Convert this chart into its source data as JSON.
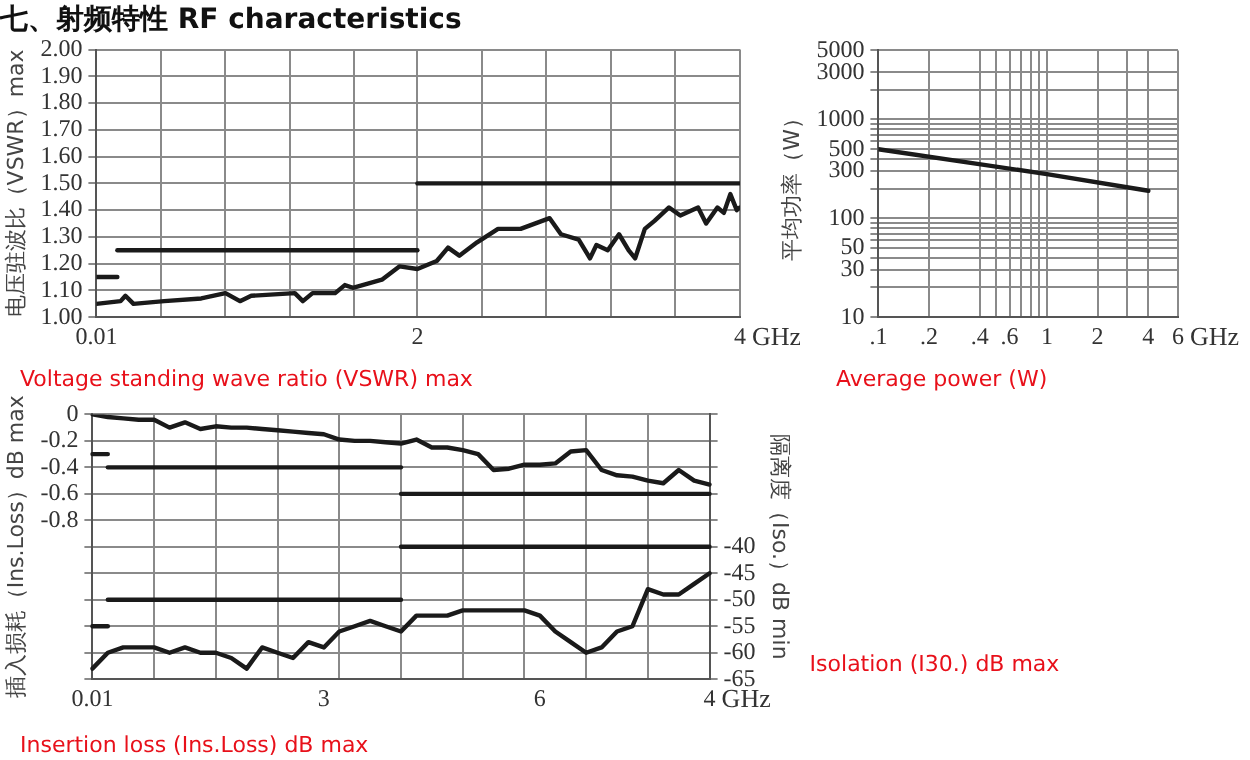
{
  "chart_data": [
    {
      "type": "line",
      "title": "七、射频特性 RF characteristics",
      "ylabel": "电压驻波比（VSWR）max",
      "xlabel": "GHz",
      "annotations": [
        "Voltage standing wave ratio (VSWR) max"
      ],
      "xlim": [
        0.01,
        4
      ],
      "xticks": [
        0.01,
        {
          "value": 0.41,
          "label": null
        },
        {
          "value": 0.81,
          "label": null
        },
        {
          "value": 1.21,
          "label": null
        },
        {
          "value": 1.61,
          "label": null
        },
        2,
        {
          "value": 2.4,
          "label": null
        },
        {
          "value": 2.8,
          "label": null
        },
        {
          "value": 3.2,
          "label": null
        },
        {
          "value": 3.6,
          "label": null
        },
        4
      ],
      "ylim": [
        1,
        2
      ],
      "yticks": [
        {
          "value": 1,
          "label": "1.00"
        },
        {
          "value": 1.1,
          "label": "1.10"
        },
        {
          "value": 1.2,
          "label": "1.20"
        },
        {
          "value": 1.3,
          "label": "1.30"
        },
        {
          "value": 1.4,
          "label": "1.40"
        },
        {
          "value": 1.5,
          "label": "1.50"
        },
        {
          "value": 1.6,
          "label": "1.60"
        },
        {
          "value": 1.7,
          "label": "1.70"
        },
        {
          "value": 1.8,
          "label": "1.80"
        },
        {
          "value": 1.9,
          "label": "1.90"
        },
        {
          "value": 2,
          "label": "2.00"
        }
      ],
      "grid": true,
      "legend": false,
      "marker": "none",
      "series": [
        {
          "color": "#1a1a1a",
          "x": [
            0.01,
            0.16,
            0.19,
            0.24,
            0.43,
            0.66,
            0.81,
            0.9,
            0.97,
            1.24,
            1.29,
            1.35,
            1.49,
            1.55,
            1.6,
            1.78,
            1.89,
            2.0,
            2.12,
            2.19,
            2.26,
            2.37,
            2.5,
            2.64,
            2.82,
            2.89,
            3.0,
            3.07,
            3.11,
            3.18,
            3.25,
            3.31,
            3.35,
            3.41,
            3.47,
            3.56,
            3.63,
            3.74,
            3.79,
            3.86,
            3.9,
            3.94,
            3.98,
            4
          ],
          "values": [
            1.05,
            1.06,
            1.08,
            1.05,
            1.06,
            1.07,
            1.09,
            1.06,
            1.08,
            1.09,
            1.06,
            1.09,
            1.09,
            1.12,
            1.11,
            1.14,
            1.19,
            1.18,
            1.21,
            1.26,
            1.23,
            1.28,
            1.33,
            1.33,
            1.37,
            1.31,
            1.29,
            1.22,
            1.27,
            1.25,
            1.31,
            1.25,
            1.22,
            1.33,
            1.36,
            1.41,
            1.38,
            1.41,
            1.35,
            1.41,
            1.39,
            1.46,
            1.4,
            1.41
          ]
        },
        {
          "color": "#1a1a1a",
          "x": [
            0.01,
            0.14
          ],
          "values": [
            1.15,
            1.15
          ]
        },
        {
          "color": "#1a1a1a",
          "x": [
            0.14,
            2
          ],
          "values": [
            1.25,
            1.25
          ]
        },
        {
          "color": "#1a1a1a",
          "x": [
            2,
            4
          ],
          "values": [
            1.5,
            1.5
          ]
        }
      ]
    },
    {
      "type": "line",
      "ylabel": "平均功率（W）",
      "xlabel": "GHz",
      "annotations": [
        "Average power (W)"
      ],
      "log": "xy",
      "xlim": [
        0.1,
        6
      ],
      "xticks": [
        {
          "value": 0.1,
          "label": ".1"
        },
        {
          "value": 0.2,
          "label": ".2"
        },
        {
          "value": 0.4,
          "label": ".4"
        },
        {
          "value": 0.5,
          "label": null
        },
        {
          "value": 0.6,
          "label": ".6"
        },
        {
          "value": 0.7,
          "label": null
        },
        {
          "value": 0.8,
          "label": null
        },
        {
          "value": 0.9,
          "label": null
        },
        {
          "value": 1,
          "label": "1"
        },
        {
          "value": 2,
          "label": "2"
        },
        {
          "value": 3,
          "label": null
        },
        {
          "value": 4,
          "label": "4"
        },
        {
          "value": 6,
          "label": "6"
        }
      ],
      "ylim": [
        10,
        5000
      ],
      "yticks": [
        10,
        {
          "value": 20,
          "label": null
        },
        30,
        {
          "value": 40,
          "label": null
        },
        50,
        {
          "value": 60,
          "label": null
        },
        {
          "value": 70,
          "label": null
        },
        {
          "value": 80,
          "label": null
        },
        {
          "value": 90,
          "label": null
        },
        100,
        {
          "value": 200,
          "label": null
        },
        300,
        {
          "value": 400,
          "label": null
        },
        500,
        {
          "value": 600,
          "label": null
        },
        {
          "value": 700,
          "label": null
        },
        {
          "value": 800,
          "label": null
        },
        {
          "value": 900,
          "label": null
        },
        1000,
        {
          "value": 2000,
          "label": null
        },
        3000,
        5000
      ],
      "grid": true,
      "legend": false,
      "marker": "none",
      "series": [
        {
          "color": "#1a1a1a",
          "x": [
            0.1,
            1,
            4
          ],
          "values": [
            500,
            280,
            190
          ]
        }
      ]
    },
    {
      "type": "line",
      "ylabel": "插入损耗（Ins.Loss）dB max",
      "y2label": "隔离度（Iso.）dB min",
      "xlabel": "GHz",
      "annotations": [
        "Insertion loss (Ins.Loss) dB max",
        "Isolation (I30.) dB max"
      ],
      "categories": [
        "0.01",
        null,
        null,
        null,
        null,
        null,
        null,
        null,
        null,
        null,
        null,
        null,
        null,
        null,
        null,
        "3",
        null,
        null,
        null,
        null,
        null,
        null,
        null,
        null,
        null,
        null,
        null,
        null,
        null,
        "6",
        null,
        null,
        null,
        null,
        null,
        null,
        null,
        null,
        null,
        null,
        "4"
      ],
      "ylim": [
        -2,
        0
      ],
      "yticks": [
        0,
        -0.2,
        -0.4,
        -0.6,
        -0.8,
        {
          "value": -1,
          "label": null
        },
        {
          "value": -1.2,
          "label": null
        },
        {
          "value": -1.4,
          "label": null
        },
        {
          "value": -1.6,
          "label": null
        },
        {
          "value": -1.8,
          "label": null
        },
        {
          "value": -2,
          "label": null
        }
      ],
      "y2lim": [
        -65,
        -15
      ],
      "y2ticks": [
        {
          "value": -15,
          "label": null
        },
        {
          "value": -20,
          "label": null
        },
        {
          "value": -25,
          "label": null
        },
        {
          "value": -30,
          "label": null
        },
        {
          "value": -35,
          "label": null
        },
        -40,
        -45,
        -50,
        -55,
        -60,
        -65
      ],
      "grid": true,
      "legend": false,
      "marker": "none",
      "series": [
        {
          "color": "#1a1a1a",
          "values": [
            0,
            -0.02,
            -0.03,
            -0.04,
            -0.04,
            -0.1,
            -0.06,
            -0.11,
            -0.09,
            -0.1,
            -0.1,
            -0.11,
            -0.12,
            -0.13,
            -0.14,
            -0.15,
            -0.19,
            -0.2,
            -0.2,
            -0.21,
            -0.22,
            -0.19,
            -0.25,
            -0.25,
            -0.27,
            -0.3,
            -0.42,
            -0.41,
            -0.38,
            -0.38,
            -0.37,
            -0.28,
            -0.27,
            -0.42,
            -0.46,
            -0.47,
            -0.5,
            -0.52,
            -0.42,
            -0.5,
            -0.53
          ]
        },
        {
          "color": "#1a1a1a",
          "values": [
            -0.3,
            -0.3,
            null,
            null,
            null,
            null,
            null,
            null,
            null,
            null,
            null,
            null,
            null,
            null,
            null,
            null,
            null,
            null,
            null,
            null,
            null,
            null,
            null,
            null,
            null,
            null,
            null,
            null,
            null,
            null,
            null,
            null,
            null,
            null,
            null,
            null,
            null,
            null,
            null,
            null,
            null
          ]
        },
        {
          "color": "#1a1a1a",
          "values": [
            null,
            -0.4,
            -0.4,
            -0.4,
            -0.4,
            -0.4,
            -0.4,
            -0.4,
            -0.4,
            -0.4,
            -0.4,
            -0.4,
            -0.4,
            -0.4,
            -0.4,
            -0.4,
            -0.4,
            -0.4,
            -0.4,
            -0.4,
            -0.4,
            null,
            null,
            null,
            null,
            null,
            null,
            null,
            null,
            null,
            null,
            null,
            null,
            null,
            null,
            null,
            null,
            null,
            null,
            null,
            null
          ]
        },
        {
          "color": "#1a1a1a",
          "values": [
            null,
            null,
            null,
            null,
            null,
            null,
            null,
            null,
            null,
            null,
            null,
            null,
            null,
            null,
            null,
            null,
            null,
            null,
            null,
            null,
            -0.6,
            -0.6,
            -0.6,
            -0.6,
            -0.6,
            -0.6,
            -0.6,
            -0.6,
            -0.6,
            -0.6,
            -0.6,
            -0.6,
            -0.6,
            -0.6,
            -0.6,
            -0.6,
            -0.6,
            -0.6,
            -0.6,
            -0.6,
            -0.6
          ]
        },
        {
          "color": "#1a1a1a",
          "axis": "y2",
          "values": [
            -63,
            -60,
            -59,
            -59,
            -59,
            -60,
            -59,
            -60,
            -60,
            -61,
            -63,
            -59,
            -60,
            -61,
            -58,
            -59,
            -56,
            -55,
            -54,
            -55,
            -56,
            -53,
            -53,
            -53,
            -52,
            -52,
            -52,
            -52,
            -52,
            -53,
            -56,
            -58,
            -60,
            -59,
            -56,
            -55,
            -48,
            -49,
            -49,
            -47,
            -45
          ]
        },
        {
          "color": "#1a1a1a",
          "axis": "y2",
          "values": [
            -55,
            -55,
            null,
            null,
            null,
            null,
            null,
            null,
            null,
            null,
            null,
            null,
            null,
            null,
            null,
            null,
            null,
            null,
            null,
            null,
            null,
            null,
            null,
            null,
            null,
            null,
            null,
            null,
            null,
            null,
            null,
            null,
            null,
            null,
            null,
            null,
            null,
            null,
            null,
            null,
            null
          ]
        },
        {
          "color": "#1a1a1a",
          "axis": "y2",
          "values": [
            null,
            -50,
            -50,
            -50,
            -50,
            -50,
            -50,
            -50,
            -50,
            -50,
            -50,
            -50,
            -50,
            -50,
            -50,
            -50,
            -50,
            -50,
            -50,
            -50,
            -50,
            null,
            null,
            null,
            null,
            null,
            null,
            null,
            null,
            null,
            null,
            null,
            null,
            null,
            null,
            null,
            null,
            null,
            null,
            null,
            null
          ]
        },
        {
          "color": "#1a1a1a",
          "axis": "y2",
          "values": [
            null,
            null,
            null,
            null,
            null,
            null,
            null,
            null,
            null,
            null,
            null,
            null,
            null,
            null,
            null,
            null,
            null,
            null,
            null,
            null,
            -40,
            -40,
            -40,
            -40,
            -40,
            -40,
            -40,
            -40,
            -40,
            -40,
            -40,
            -40,
            -40,
            -40,
            -40,
            -40,
            -40,
            -40,
            -40,
            -40,
            -40
          ]
        }
      ]
    }
  ]
}
